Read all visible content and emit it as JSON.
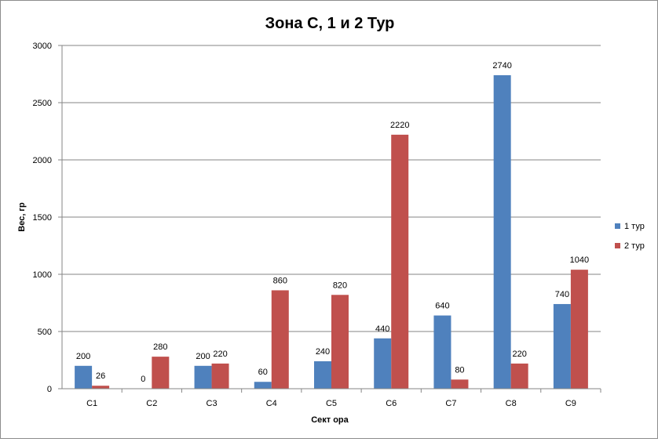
{
  "chart_data": {
    "type": "bar",
    "title": "Зона С, 1 и 2 Тур",
    "xlabel": "Сект ора",
    "ylabel": "Вес, гр",
    "categories": [
      "С1",
      "С2",
      "С3",
      "С4",
      "С5",
      "С6",
      "С7",
      "С8",
      "С9"
    ],
    "series": [
      {
        "name": "1 тур",
        "color": "#4f81bd",
        "values": [
          200,
          0,
          200,
          60,
          240,
          440,
          640,
          2740,
          740
        ]
      },
      {
        "name": "2 тур",
        "color": "#c0504d",
        "values": [
          26,
          280,
          220,
          860,
          820,
          2220,
          80,
          220,
          1040
        ]
      }
    ],
    "ylim": [
      0,
      3000
    ],
    "yticks": [
      0,
      500,
      1000,
      1500,
      2000,
      2500,
      3000
    ],
    "grid": true,
    "legend": "right"
  }
}
